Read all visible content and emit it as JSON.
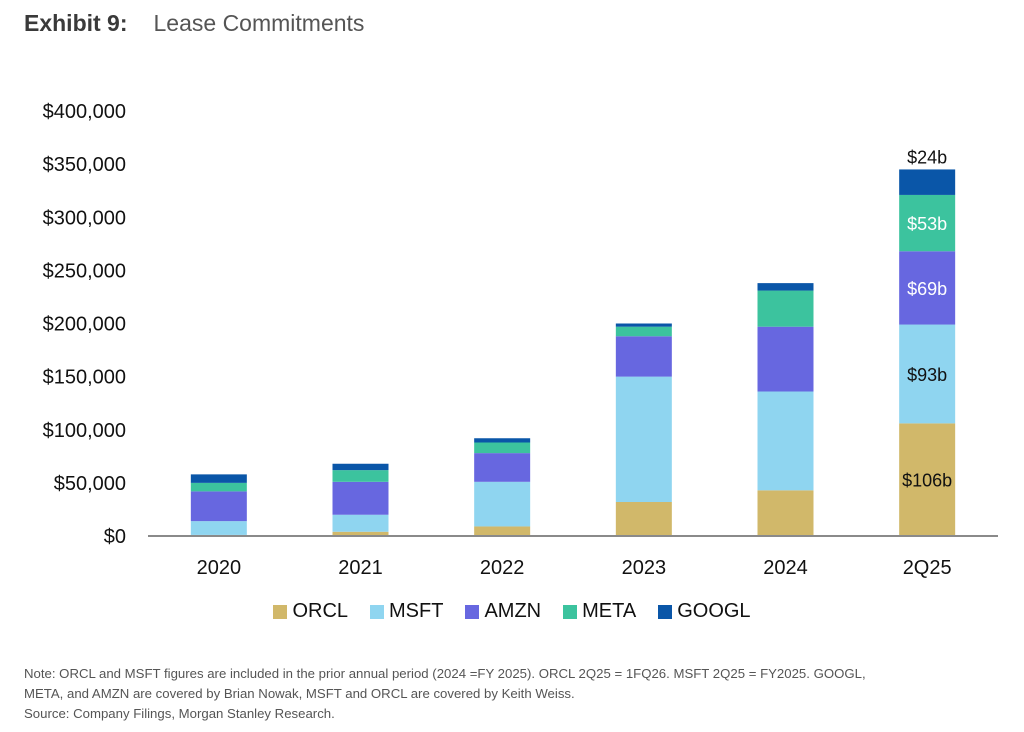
{
  "header": {
    "exhibit": "Exhibit 9:",
    "title": "Lease Commitments"
  },
  "chart_data": {
    "type": "bar",
    "stacked": true,
    "title": "Lease Commitments",
    "xlabel": "",
    "ylabel": "",
    "ylim": [
      0,
      400000
    ],
    "yticks": [
      0,
      50000,
      100000,
      150000,
      200000,
      250000,
      300000,
      350000,
      400000
    ],
    "ytick_labels": [
      "$0",
      "$50,000",
      "$100,000",
      "$150,000",
      "$200,000",
      "$250,000",
      "$300,000",
      "$350,000",
      "$400,000"
    ],
    "categories": [
      "2020",
      "2021",
      "2022",
      "2023",
      "2024",
      "2Q25"
    ],
    "series": [
      {
        "name": "ORCL",
        "color": "#d1b86a",
        "values": [
          1000,
          4000,
          9000,
          32000,
          43000,
          106000
        ]
      },
      {
        "name": "MSFT",
        "color": "#8fd5f0",
        "values": [
          13000,
          16000,
          42000,
          118000,
          93000,
          93000
        ]
      },
      {
        "name": "AMZN",
        "color": "#6767e0",
        "values": [
          28000,
          31000,
          27000,
          38000,
          61000,
          69000
        ]
      },
      {
        "name": "META",
        "color": "#3cc39e",
        "values": [
          8000,
          11000,
          10000,
          9000,
          34000,
          53000
        ]
      },
      {
        "name": "GOOGL",
        "color": "#0a56a8",
        "values": [
          8000,
          6000,
          4000,
          3000,
          7000,
          24000
        ]
      }
    ],
    "data_labels": [
      {
        "category": "2Q25",
        "series": "ORCL",
        "text": "$106b",
        "color": "#111111"
      },
      {
        "category": "2Q25",
        "series": "MSFT",
        "text": "$93b",
        "color": "#111111"
      },
      {
        "category": "2Q25",
        "series": "AMZN",
        "text": "$69b",
        "color": "#ffffff"
      },
      {
        "category": "2Q25",
        "series": "META",
        "text": "$53b",
        "color": "#ffffff"
      },
      {
        "category": "2Q25",
        "series": "GOOGL",
        "text": "$24b",
        "color": "#111111",
        "position": "above"
      }
    ],
    "legend": {
      "position": "bottom",
      "entries": [
        "ORCL",
        "MSFT",
        "AMZN",
        "META",
        "GOOGL"
      ]
    },
    "grid": false
  },
  "footer": {
    "note_line1": "Note: ORCL and MSFT figures are included in the prior annual period (2024 =FY 2025). ORCL 2Q25 = 1FQ26. MSFT 2Q25 = FY2025. GOOGL,",
    "note_line2": "META, and AMZN are covered by Brian Nowak, MSFT and ORCL are covered by Keith Weiss.",
    "source": "Source: Company Filings, Morgan Stanley Research."
  }
}
